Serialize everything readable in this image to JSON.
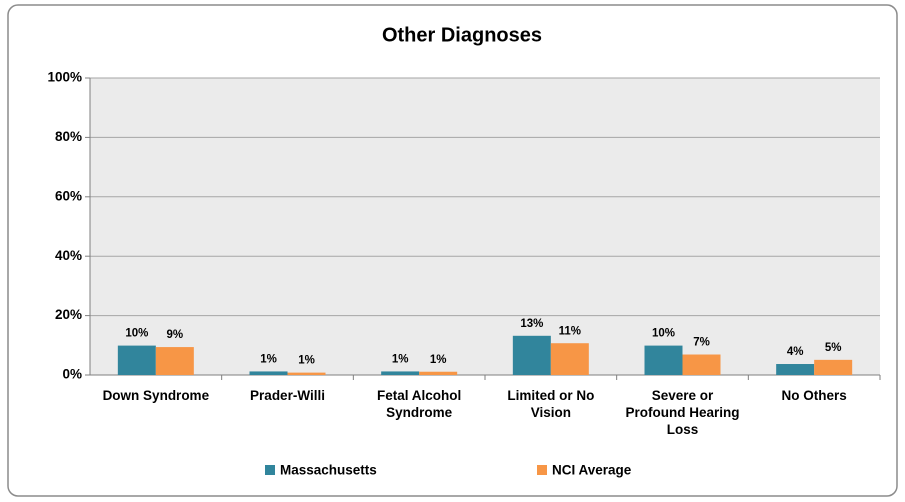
{
  "chart_data": {
    "type": "bar",
    "title": "Other Diagnoses",
    "categories": [
      "Down Syndrome",
      "Prader-Willi",
      "Fetal Alcohol Syndrome",
      "Limited or No Vision",
      "Severe or Profound Hearing Loss",
      "No Others"
    ],
    "series": [
      {
        "name": "Massachusetts",
        "color": "#31859c",
        "values": [
          9.9,
          1.2,
          1.2,
          13.2,
          9.9,
          3.7
        ],
        "value_labels": [
          "10%",
          "1%",
          "1%",
          "13%",
          "10%",
          "4%"
        ]
      },
      {
        "name": "NCI Average",
        "color": "#f79646",
        "values": [
          9.4,
          0.8,
          1.1,
          10.7,
          6.9,
          5.1
        ],
        "value_labels": [
          "9%",
          "1%",
          "1%",
          "11%",
          "7%",
          "5%"
        ]
      }
    ],
    "ylim": [
      0,
      100
    ],
    "yticks": [
      {
        "value": 0,
        "label": "0%"
      },
      {
        "value": 20,
        "label": "20%"
      },
      {
        "value": 40,
        "label": "40%"
      },
      {
        "value": 60,
        "label": "60%"
      },
      {
        "value": 80,
        "label": "80%"
      },
      {
        "value": 100,
        "label": "100%"
      }
    ],
    "grid": true,
    "legend": "bottom"
  }
}
